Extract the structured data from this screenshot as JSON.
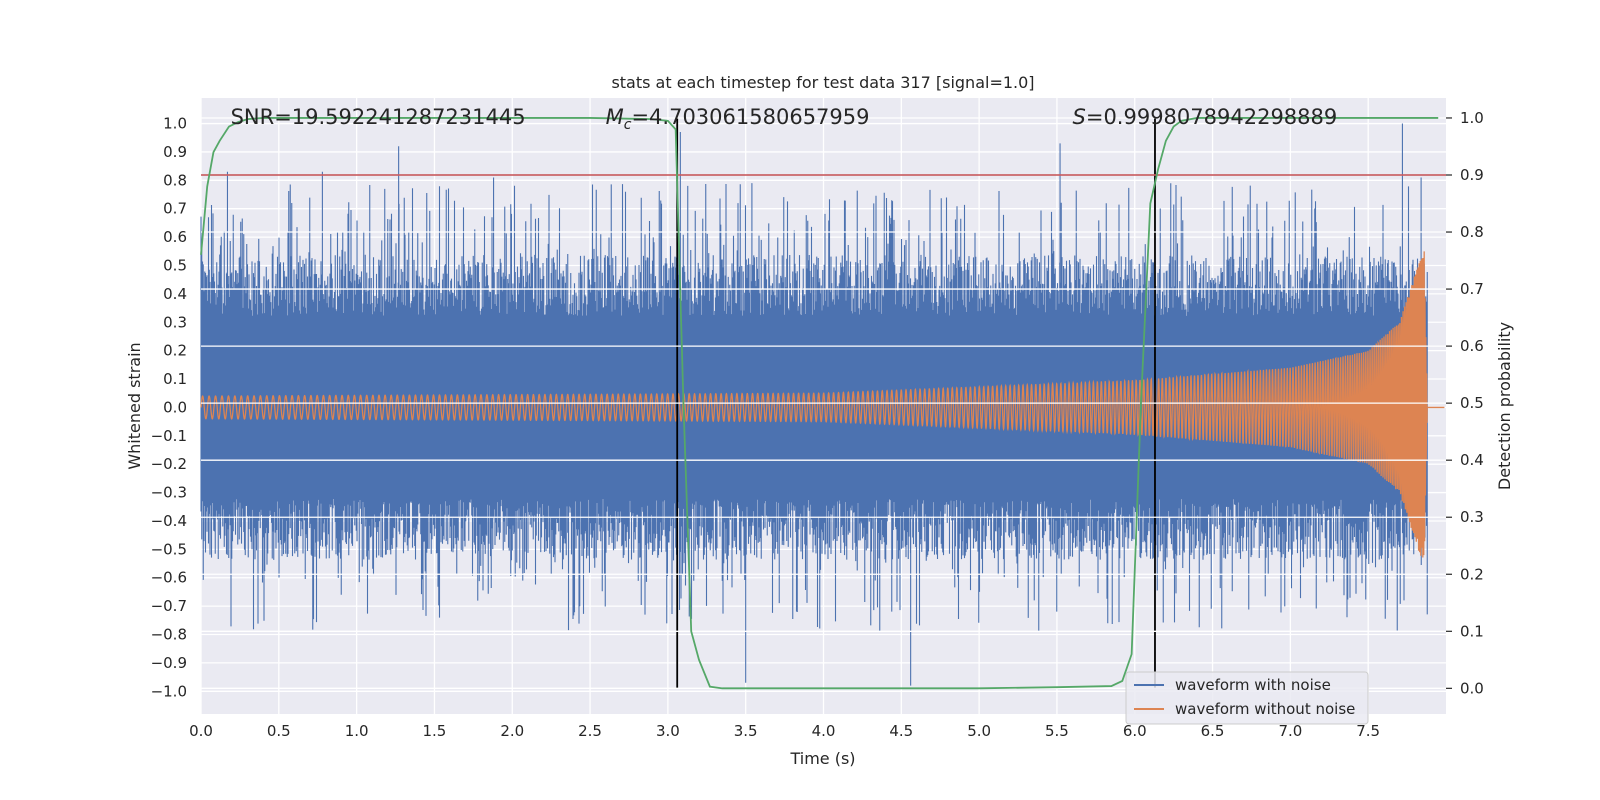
{
  "chart_data": {
    "type": "line",
    "title": "stats at each timestep for test data 317 [signal=1.0]",
    "xlabel": "Time (s)",
    "ylabel_left": "Whitened strain",
    "ylabel_right": "Detection probability",
    "xlim": [
      0.0,
      8.0
    ],
    "ylim_left": [
      -1.08,
      1.09
    ],
    "ylim_right": [
      -0.045,
      1.035
    ],
    "x_ticks": [
      0.0,
      0.5,
      1.0,
      1.5,
      2.0,
      2.5,
      3.0,
      3.5,
      4.0,
      4.5,
      5.0,
      5.5,
      6.0,
      6.5,
      7.0,
      7.5
    ],
    "x_tick_labels": [
      "0.0",
      "0.5",
      "1.0",
      "1.5",
      "2.0",
      "2.5",
      "3.0",
      "3.5",
      "4.0",
      "4.5",
      "5.0",
      "5.5",
      "6.0",
      "6.5",
      "7.0",
      "7.5"
    ],
    "y_left_ticks": [
      -1.0,
      -0.9,
      -0.8,
      -0.7,
      -0.6,
      -0.5,
      -0.4,
      -0.3,
      -0.2,
      -0.1,
      0.0,
      0.1,
      0.2,
      0.3,
      0.4,
      0.5,
      0.6,
      0.7,
      0.8,
      0.9,
      1.0
    ],
    "y_left_tick_labels": [
      "−1.0",
      "−0.9",
      "−0.8",
      "−0.7",
      "−0.6",
      "−0.5",
      "−0.4",
      "−0.3",
      "−0.2",
      "−0.1",
      "0.0",
      "0.1",
      "0.2",
      "0.3",
      "0.4",
      "0.5",
      "0.6",
      "0.7",
      "0.8",
      "0.9",
      "1.0"
    ],
    "y_right_ticks": [
      0.0,
      0.1,
      0.2,
      0.3,
      0.4,
      0.5,
      0.6,
      0.7,
      0.8,
      0.9,
      1.0
    ],
    "y_right_tick_labels": [
      "0.0",
      "0.1",
      "0.2",
      "0.3",
      "0.4",
      "0.5",
      "0.6",
      "0.7",
      "0.8",
      "0.9",
      "1.0"
    ],
    "series": [
      {
        "name": "waveform with noise",
        "color": "#4c72b0",
        "axis": "left",
        "t_end": 7.88,
        "amplitude_envelope": [
          0.43,
          0.79
        ],
        "peaks": [
          [
            0.17,
            0.83
          ],
          [
            0.78,
            0.83
          ],
          [
            1.27,
            0.92
          ],
          [
            1.88,
            0.81
          ],
          [
            3.08,
            0.97
          ],
          [
            3.5,
            -0.97
          ],
          [
            3.54,
            0.79
          ],
          [
            4.56,
            -0.98
          ],
          [
            5.52,
            0.93
          ],
          [
            7.72,
            1.0
          ],
          [
            7.84,
            0.81
          ]
        ]
      },
      {
        "name": "waveform without noise",
        "color": "#dd8452",
        "axis": "left",
        "t_end": 7.88,
        "amplitude_envelope_t": [
          0.0,
          2.0,
          4.0,
          6.0,
          7.0,
          7.5,
          7.7,
          7.82,
          7.86,
          7.88
        ],
        "amplitude_envelope_v": [
          0.04,
          0.045,
          0.05,
          0.095,
          0.14,
          0.2,
          0.3,
          0.5,
          0.55,
          0.0
        ]
      },
      {
        "name": "Detection probability",
        "color": "#55a868",
        "axis": "right",
        "x": [
          0.0,
          0.04,
          0.08,
          0.12,
          0.18,
          0.24,
          0.3,
          0.4,
          0.6,
          1.0,
          2.0,
          2.5,
          2.9,
          3.0,
          3.05,
          3.1,
          3.15,
          3.2,
          3.27,
          3.35,
          3.5,
          4.0,
          4.5,
          5.0,
          5.5,
          5.85,
          5.92,
          5.98,
          6.04,
          6.1,
          6.15,
          6.2,
          6.25,
          6.3,
          6.4,
          6.5,
          7.0,
          7.5,
          7.95
        ],
        "values": [
          0.76,
          0.88,
          0.94,
          0.96,
          0.985,
          0.993,
          0.998,
          1.0,
          1.0,
          1.0,
          1.0,
          1.0,
          0.998,
          0.995,
          0.98,
          0.5,
          0.1,
          0.05,
          0.003,
          0.0,
          0.0,
          0.0,
          0.0,
          0.0,
          0.002,
          0.004,
          0.013,
          0.06,
          0.5,
          0.85,
          0.91,
          0.96,
          0.985,
          0.995,
          1.0,
          1.0,
          1.0,
          1.0,
          1.0
        ]
      }
    ],
    "threshold_line": {
      "value": 0.9,
      "axis": "right",
      "color": "#c44e52"
    },
    "vertical_lines": [
      {
        "x": 3.06,
        "y_top": 1.0,
        "y_bottom": 0.0,
        "color": "#000000"
      },
      {
        "x": 6.13,
        "y_top": 1.0,
        "y_bottom": 0.0,
        "color": "#000000"
      }
    ],
    "annotations": [
      {
        "x": 0.19,
        "text": "SNR=19.592241287231445"
      },
      {
        "x": 2.6,
        "text_prefix": "M",
        "text_sub": "c",
        "text": "=4.703061580657959"
      },
      {
        "x": 5.6,
        "text_prefix": "S",
        "text": "=0.9998078942298889"
      }
    ],
    "legend": {
      "location": "lower right",
      "entries": [
        "waveform with noise",
        "waveform without noise"
      ]
    },
    "background": "#eaeaf2",
    "grid": true
  }
}
